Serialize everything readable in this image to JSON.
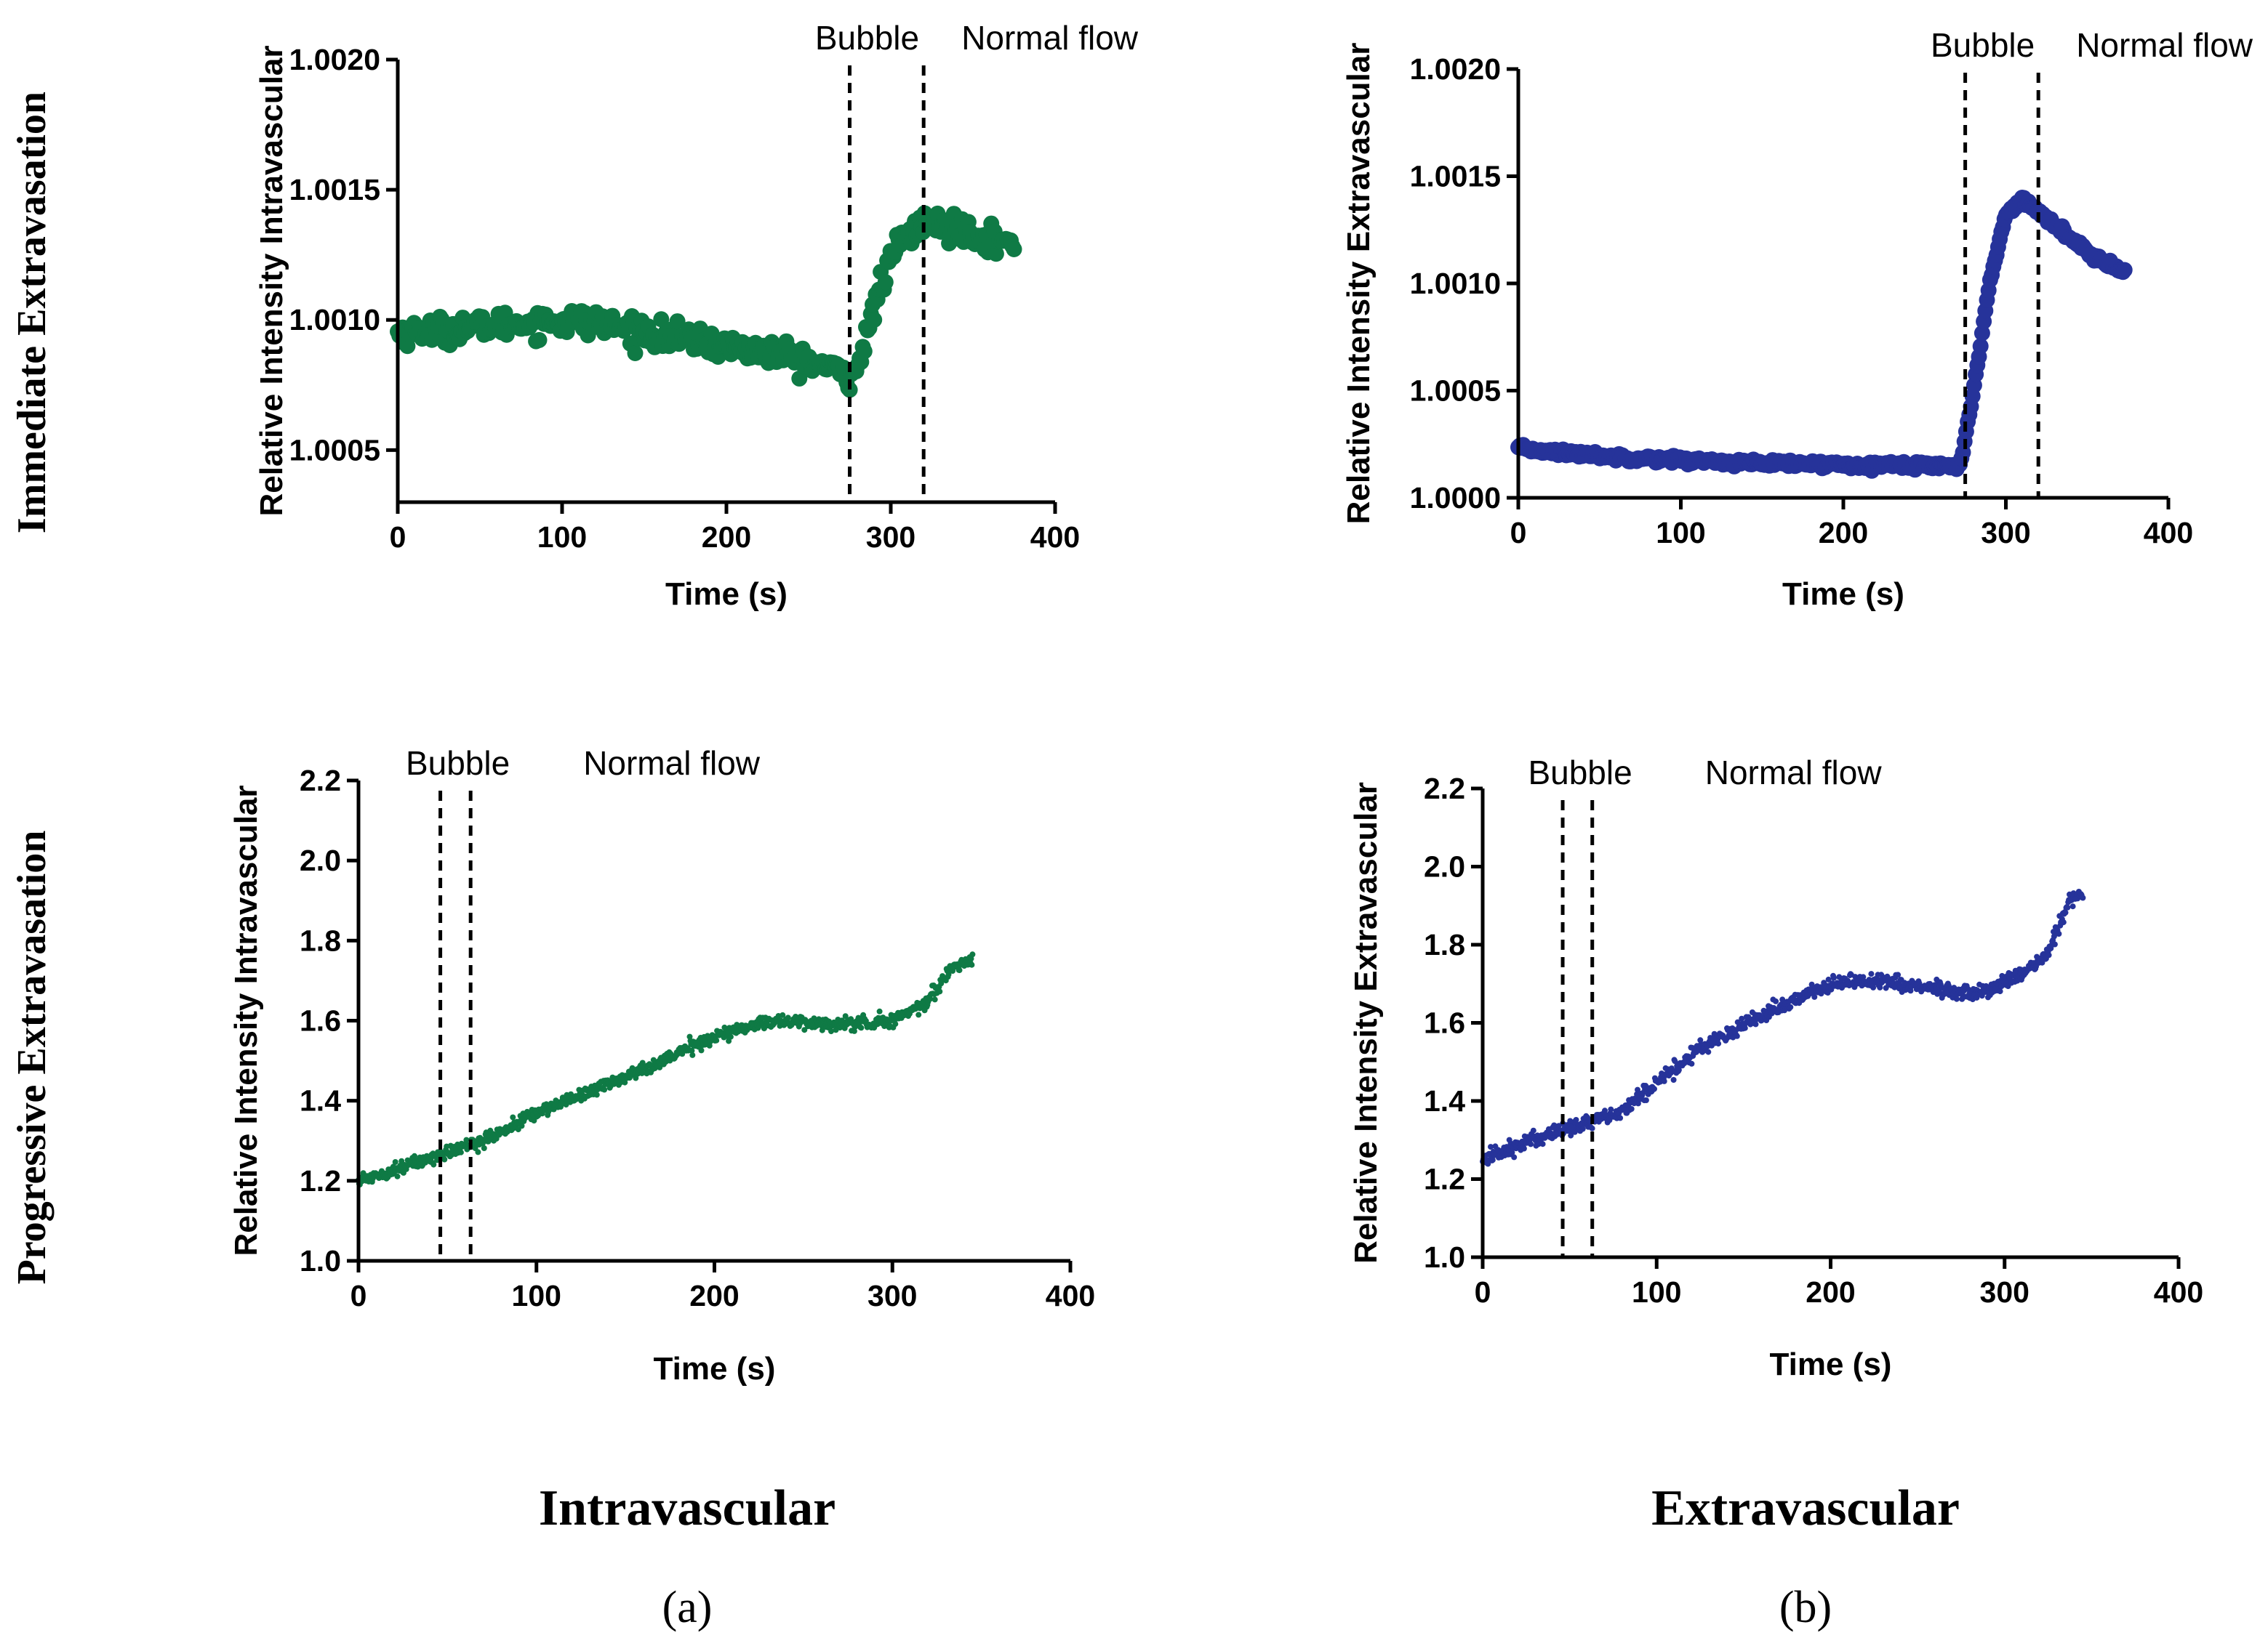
{
  "figure": {
    "row_labels": [
      "Immediate Extravasation",
      "Progressive Extravasation"
    ],
    "column_labels": [
      "Intravascular",
      "Extravascular"
    ],
    "panel_labels": [
      "(a)",
      "(b)"
    ]
  },
  "colors": {
    "green": "#0f7a45",
    "blue": "#26339a"
  },
  "chart_data": [
    {
      "id": "imm-intra",
      "type": "scatter",
      "row": "Immediate Extravasation",
      "column": "Intravascular",
      "color": "#0f7a45",
      "xlabel": "Time (s)",
      "ylabel": "Relative Intensity Intravascular",
      "xlim": [
        0,
        400
      ],
      "ylim": [
        1.0003,
        1.002
      ],
      "xticks": [
        0,
        100,
        200,
        300,
        400
      ],
      "xtick_labels": [
        "0",
        "100",
        "200",
        "300",
        "400"
      ],
      "yticks": [
        1.0005,
        1.001,
        1.0015,
        1.002
      ],
      "ytick_labels": [
        "1.0005",
        "1.0010",
        "1.0015",
        "1.0020"
      ],
      "markers": [
        {
          "x": 275,
          "label": "Bubble"
        },
        {
          "x": 320,
          "label": "Normal flow"
        }
      ],
      "grid": false,
      "marker_size": "large",
      "series": [
        {
          "name": "Intravascular",
          "x_start": 0,
          "x_end": 375,
          "n_points": 380,
          "noise": 2.5e-05,
          "trend": [
            [
              0,
              1.00095
            ],
            [
              60,
              1.00098
            ],
            [
              110,
              1.001
            ],
            [
              170,
              1.00093
            ],
            [
              240,
              1.00086
            ],
            [
              270,
              1.0008
            ],
            [
              276,
              1.00078
            ],
            [
              283,
              1.00088
            ],
            [
              292,
              1.0011
            ],
            [
              305,
              1.0013
            ],
            [
              320,
              1.00137
            ],
            [
              345,
              1.00135
            ],
            [
              375,
              1.00128
            ]
          ]
        }
      ]
    },
    {
      "id": "imm-extra",
      "type": "scatter",
      "row": "Immediate Extravasation",
      "column": "Extravascular",
      "color": "#26339a",
      "xlabel": "Time (s)",
      "ylabel": "Relative Intensity Extravascular",
      "xlim": [
        0,
        400
      ],
      "ylim": [
        1.0,
        1.002
      ],
      "xticks": [
        0,
        100,
        200,
        300,
        400
      ],
      "xtick_labels": [
        "0",
        "100",
        "200",
        "300",
        "400"
      ],
      "yticks": [
        1.0,
        1.0005,
        1.001,
        1.0015,
        1.002
      ],
      "ytick_labels": [
        "1.0000",
        "1.0005",
        "1.0010",
        "1.0015",
        "1.0020"
      ],
      "markers": [
        {
          "x": 275,
          "label": "Bubble"
        },
        {
          "x": 320,
          "label": "Normal flow"
        }
      ],
      "grid": false,
      "marker_size": "large",
      "series": [
        {
          "name": "Extravascular",
          "x_start": 0,
          "x_end": 373,
          "n_points": 380,
          "noise": 8e-06,
          "trend": [
            [
              0,
              1.00023
            ],
            [
              60,
              1.00019
            ],
            [
              150,
              1.00016
            ],
            [
              272,
              1.00015
            ],
            [
              280,
              1.0005
            ],
            [
              290,
              1.001
            ],
            [
              300,
              1.00132
            ],
            [
              310,
              1.0014
            ],
            [
              325,
              1.0013
            ],
            [
              350,
              1.00115
            ],
            [
              373,
              1.00105
            ]
          ]
        }
      ]
    },
    {
      "id": "prog-intra",
      "type": "scatter",
      "row": "Progressive Extravasation",
      "column": "Intravascular",
      "color": "#0f7a45",
      "xlabel": "Time (s)",
      "ylabel": "Relative Intensity Intravascular",
      "xlim": [
        0,
        400
      ],
      "ylim": [
        1.0,
        2.2
      ],
      "xticks": [
        0,
        100,
        200,
        300,
        400
      ],
      "xtick_labels": [
        "0",
        "100",
        "200",
        "300",
        "400"
      ],
      "yticks": [
        1.0,
        1.2,
        1.4,
        1.6,
        1.8,
        2.0,
        2.2
      ],
      "ytick_labels": [
        "1.0",
        "1.2",
        "1.4",
        "1.6",
        "1.8",
        "2.0",
        "2.2"
      ],
      "markers": [
        {
          "x": 46,
          "label": "Bubble"
        },
        {
          "x": 63,
          "label": "Normal flow"
        }
      ],
      "grid": false,
      "marker_size": "small",
      "series": [
        {
          "name": "Intravascular",
          "x_start": 0,
          "x_end": 345,
          "n_points": 900,
          "noise": 0.008,
          "trend": [
            [
              0,
              1.2
            ],
            [
              50,
              1.27
            ],
            [
              75,
              1.31
            ],
            [
              100,
              1.37
            ],
            [
              150,
              1.46
            ],
            [
              200,
              1.56
            ],
            [
              230,
              1.6
            ],
            [
              270,
              1.59
            ],
            [
              300,
              1.6
            ],
            [
              320,
              1.65
            ],
            [
              335,
              1.74
            ],
            [
              345,
              1.75
            ]
          ]
        }
      ]
    },
    {
      "id": "prog-extra",
      "type": "scatter",
      "row": "Progressive Extravasation",
      "column": "Extravascular",
      "color": "#26339a",
      "xlabel": "Time (s)",
      "ylabel": "Relative Intensity Extravascular",
      "xlim": [
        0,
        400
      ],
      "ylim": [
        1.0,
        2.2
      ],
      "xticks": [
        0,
        100,
        200,
        300,
        400
      ],
      "xtick_labels": [
        "0",
        "100",
        "200",
        "300",
        "400"
      ],
      "yticks": [
        1.0,
        1.2,
        1.4,
        1.6,
        1.8,
        2.0,
        2.2
      ],
      "ytick_labels": [
        "1.0",
        "1.2",
        "1.4",
        "1.6",
        "1.8",
        "2.0",
        "2.2"
      ],
      "markers": [
        {
          "x": 46,
          "label": "Bubble"
        },
        {
          "x": 63,
          "label": "Normal flow"
        }
      ],
      "grid": false,
      "marker_size": "small",
      "series": [
        {
          "name": "Extravascular",
          "x_start": 0,
          "x_end": 345,
          "n_points": 900,
          "noise": 0.01,
          "trend": [
            [
              0,
              1.25
            ],
            [
              40,
              1.32
            ],
            [
              80,
              1.37
            ],
            [
              100,
              1.45
            ],
            [
              130,
              1.55
            ],
            [
              170,
              1.64
            ],
            [
              200,
              1.7
            ],
            [
              230,
              1.71
            ],
            [
              255,
              1.69
            ],
            [
              280,
              1.67
            ],
            [
              310,
              1.72
            ],
            [
              325,
              1.78
            ],
            [
              338,
              1.92
            ],
            [
              345,
              1.93
            ]
          ]
        }
      ]
    }
  ]
}
